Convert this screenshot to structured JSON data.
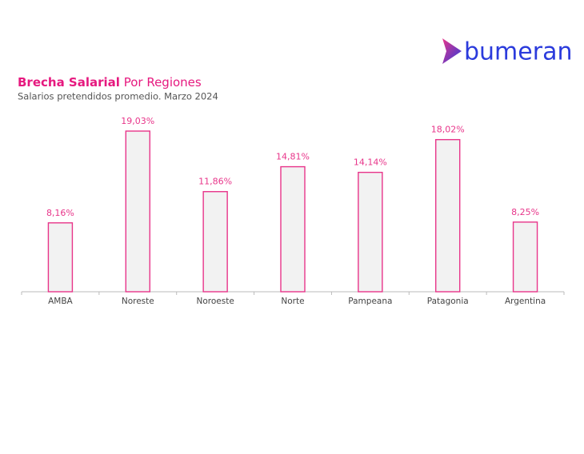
{
  "logo": "bumeran",
  "chart_data": {
    "type": "bar",
    "title": "Brecha Salarial",
    "title_rest": "Por Regiones",
    "subtitle": "Salarios pretendidos promedio. Marzo  2024",
    "categories": [
      "AMBA",
      "Noreste",
      "Noroeste",
      "Norte",
      "Pampeana",
      "Patagonia",
      "Argentina"
    ],
    "values": [
      8.16,
      19.03,
      11.86,
      14.81,
      14.14,
      18.02,
      8.25
    ],
    "value_labels": [
      "8,16%",
      "19,03%",
      "11,86%",
      "14,81%",
      "14,14%",
      "18,02%",
      "8,25%"
    ],
    "color": "#e8358a"
  }
}
